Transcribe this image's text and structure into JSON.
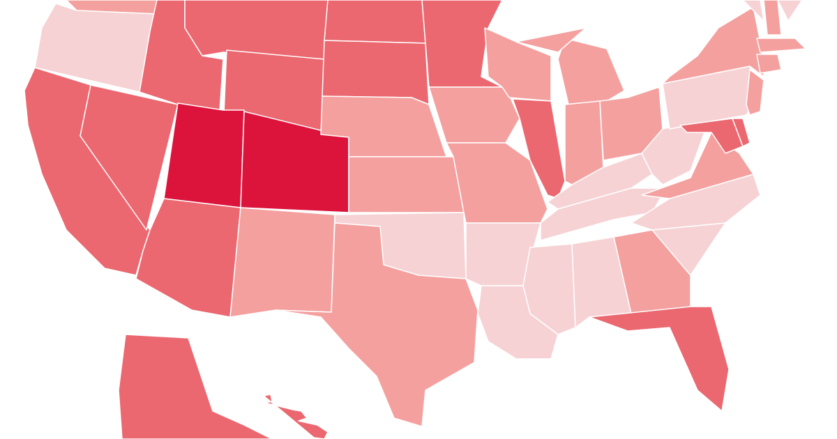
{
  "map": {
    "regions": [
      {
        "color": "#f4a09e"
      },
      {
        "color": "#f6d2d4"
      },
      {
        "color": "#eb6870"
      },
      {
        "color": "#eb6870"
      },
      {
        "color": "#eb6870"
      },
      {
        "color": "#eb6870"
      },
      {
        "color": "#eb6870"
      },
      {
        "color": "#dc143c"
      },
      {
        "color": "#dc143c"
      },
      {
        "color": "#eb6870"
      },
      {
        "color": "#f4a09e"
      },
      {
        "color": "#eb6870"
      },
      {
        "color": "#eb6870"
      },
      {
        "color": "#f4a09e"
      },
      {
        "color": "#f4a09e"
      },
      {
        "color": "#f6d2d4"
      },
      {
        "color": "#f4a09e"
      },
      {
        "color": "#eb6870"
      },
      {
        "color": "#f4a09e"
      },
      {
        "color": "#f4a09e"
      },
      {
        "color": "#f6d2d4"
      },
      {
        "color": "#f6d2d4"
      },
      {
        "color": "#f4a09e"
      },
      {
        "color": "#eb6870"
      },
      {
        "color": "#f4a09e"
      },
      {
        "color": "#f4a09e"
      },
      {
        "color": "#f4a09e"
      },
      {
        "color": "#f4a09e"
      },
      {
        "color": "#f6d2d4"
      },
      {
        "color": "#f6d2d4"
      },
      {
        "color": "#f6d2d4"
      },
      {
        "color": "#f6d2d4"
      },
      {
        "color": "#f4a09e"
      },
      {
        "color": "#eb6870"
      },
      {
        "color": "#f6d2d4"
      },
      {
        "color": "#f6d2d4"
      },
      {
        "color": "#f4a09e"
      },
      {
        "color": "#f6d2d4"
      },
      {
        "color": "#f6d2d4"
      },
      {
        "color": "#f4a09e"
      },
      {
        "color": "#f4a09e"
      },
      {
        "color": "#eb6870"
      },
      {
        "color": "#eb6870"
      },
      {
        "color": "#f6d2d4"
      },
      {
        "color": "#f4a09e"
      },
      {
        "color": "#f4a09e"
      },
      {
        "color": "#f4a09e"
      },
      {
        "color": "#f6d2d4"
      },
      {
        "color": "#eb6870"
      },
      {
        "color": "#eb6870"
      }
    ]
  }
}
